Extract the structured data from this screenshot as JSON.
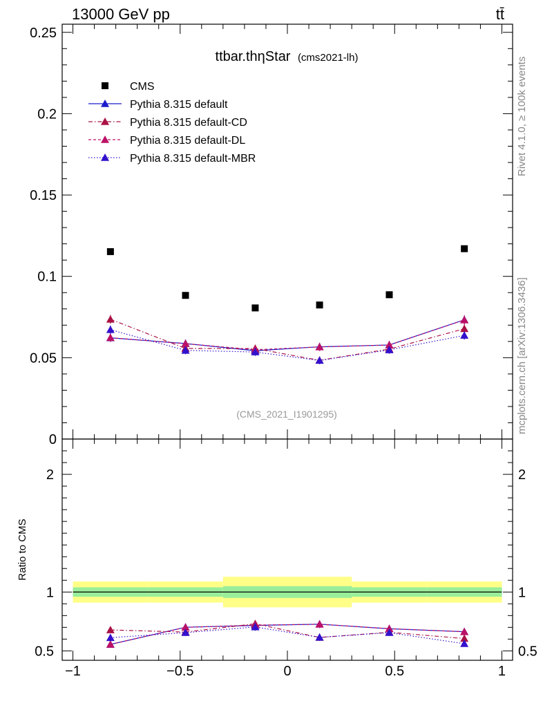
{
  "header": {
    "left": "13000 GeV pp",
    "right": "tt̄"
  },
  "side": {
    "rivet": "Rivet 4.1.0, ≥ 100k events",
    "mcplots": "mcplots.cern.ch [arXiv:1306.3436]"
  },
  "chart_data": {
    "type": "line",
    "title_main": "ttbar.thηStar",
    "title_sub": "(cms2021-lh)",
    "watermark": "(CMS_2021_I1901295)",
    "xlim": [
      -1.05,
      1.05
    ],
    "x_ticks": [
      -1,
      -0.5,
      0,
      0.5,
      1
    ],
    "x_tick_labels": [
      "−1",
      "−0.5",
      "0",
      "0.5",
      "1"
    ],
    "main_ylim": [
      0,
      0.255
    ],
    "main_y_ticks": [
      0,
      0.05,
      0.1,
      0.15,
      0.2,
      0.25
    ],
    "main_y_tick_labels": [
      "0",
      "0.05",
      "0.1",
      "0.15",
      "0.2",
      "0.25"
    ],
    "ratio_ylim": [
      0.42,
      2.3
    ],
    "ratio_y_ticks": [
      0.5,
      1,
      2
    ],
    "ratio_y_tick_labels": [
      "0.5",
      "1",
      "2"
    ],
    "ratio_ylabel": "Ratio to CMS",
    "bins": [
      -1,
      -0.65,
      -0.3,
      0,
      0.3,
      0.65,
      1
    ],
    "x": [
      -0.825,
      -0.475,
      -0.15,
      0.15,
      0.475,
      0.825
    ],
    "data": {
      "name": "CMS",
      "color": "#000000",
      "values": [
        0.1152,
        0.0883,
        0.0806,
        0.0824,
        0.0887,
        0.117
      ],
      "band_inner": [
        0.04,
        0.04,
        0.05,
        0.05,
        0.04,
        0.04
      ],
      "band_outer": [
        0.09,
        0.09,
        0.13,
        0.13,
        0.09,
        0.09
      ],
      "band_inner_color": "#99ee99",
      "band_outer_color": "#ffff88"
    },
    "series": [
      {
        "name": "Pythia 8.315 default",
        "color": "#1a1acc",
        "dash": "",
        "values": [
          0.0622,
          0.0587,
          0.0543,
          0.0567,
          0.0578,
          0.0733
        ],
        "err": [
          0.0025,
          0.0025,
          0.0024,
          0.0025,
          0.0025,
          0.0028
        ],
        "ratio": [
          0.555,
          0.701,
          0.716,
          0.727,
          0.688,
          0.663
        ]
      },
      {
        "name": "Pythia 8.315 default-CD",
        "color": "#aa1144",
        "dash": "6,3,1.5,3",
        "values": [
          0.0736,
          0.0557,
          0.0556,
          0.0484,
          0.0553,
          0.0678
        ],
        "err": [
          0.0027,
          0.0024,
          0.0024,
          0.0023,
          0.0024,
          0.0027
        ],
        "ratio": [
          0.678,
          0.66,
          0.73,
          0.614,
          0.658,
          0.605
        ]
      },
      {
        "name": "Pythia 8.315 default-DL",
        "color": "#bb1166",
        "dash": "4,3",
        "values": [
          0.0623,
          0.0586,
          0.0549,
          0.0566,
          0.0578,
          0.0732
        ],
        "err": [
          0.0025,
          0.0025,
          0.0024,
          0.0025,
          0.0025,
          0.0028
        ],
        "ratio": [
          0.555,
          0.7,
          0.719,
          0.726,
          0.689,
          0.662
        ]
      },
      {
        "name": "Pythia 8.315 default-MBR",
        "color": "#3311cc",
        "dash": "1.5,2.5",
        "values": [
          0.0672,
          0.0545,
          0.0535,
          0.0483,
          0.0548,
          0.0637
        ],
        "err": [
          0.0026,
          0.0024,
          0.0024,
          0.0023,
          0.0024,
          0.0026
        ],
        "ratio": [
          0.612,
          0.655,
          0.703,
          0.615,
          0.655,
          0.561
        ]
      }
    ],
    "legend_position": "top-left"
  }
}
